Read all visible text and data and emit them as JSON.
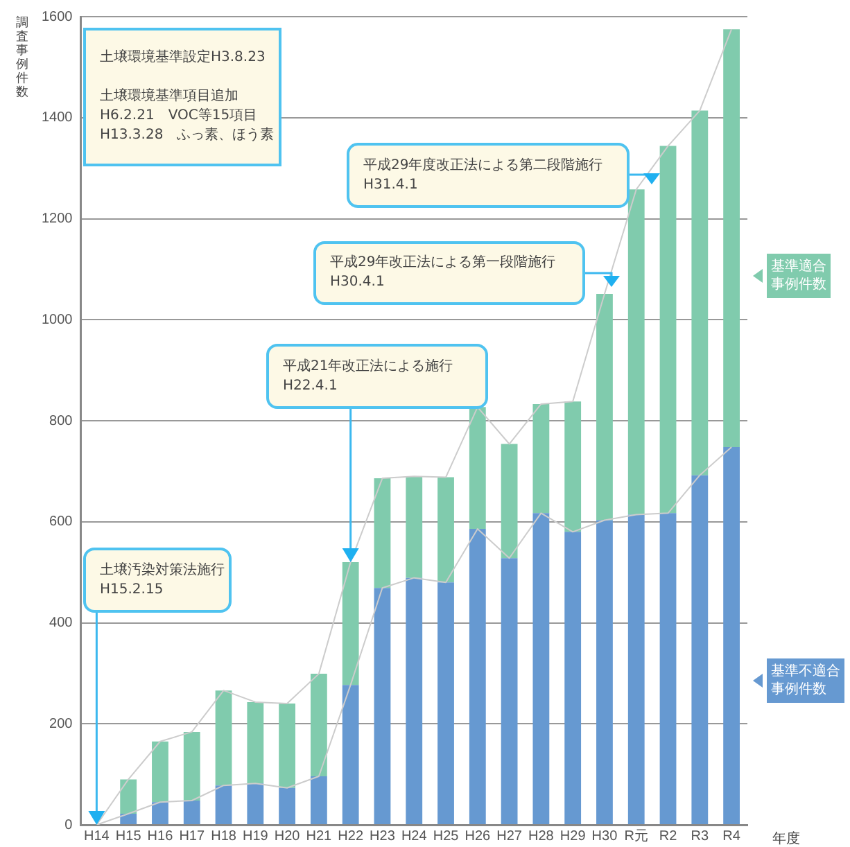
{
  "chart_data": {
    "type": "bar",
    "stacked": true,
    "ylabel": "調査事例件数",
    "xlabel": "年度",
    "categories": [
      "H14",
      "H15",
      "H16",
      "H17",
      "H18",
      "H19",
      "H20",
      "H21",
      "H22",
      "H23",
      "H24",
      "H25",
      "H26",
      "H27",
      "H28",
      "H29",
      "H30",
      "R元",
      "R2",
      "R3",
      "R4"
    ],
    "series": [
      {
        "name": "基準不適合事例件数",
        "color": "#6699d1",
        "values": [
          0,
          22,
          45,
          48,
          78,
          82,
          73,
          96,
          277,
          469,
          489,
          480,
          586,
          528,
          617,
          580,
          603,
          614,
          617,
          692,
          748
        ]
      },
      {
        "name": "基準適合事例件数",
        "color": "#80cbad",
        "values": [
          0,
          68,
          120,
          136,
          188,
          161,
          167,
          203,
          243,
          217,
          201,
          208,
          241,
          226,
          216,
          258,
          448,
          644,
          727,
          722,
          827
        ]
      },
      {
        "type": "line",
        "color": "#cccccc",
        "values": [
          0,
          22,
          45,
          48,
          78,
          82,
          73,
          96,
          277,
          469,
          489,
          480,
          586,
          528,
          617,
          580,
          603,
          614,
          617,
          692,
          748
        ]
      },
      {
        "type": "line",
        "color": "#cccccc",
        "values": [
          0,
          90,
          165,
          184,
          266,
          243,
          240,
          299,
          520,
          686,
          690,
          688,
          827,
          754,
          833,
          838,
          1051,
          1258,
          1344,
          1414,
          1575
        ]
      }
    ],
    "ylim": [
      0,
      1600
    ],
    "yticks": [
      0,
      200,
      400,
      600,
      800,
      1000,
      1200,
      1400,
      1600
    ],
    "grid": "y",
    "legend": "right",
    "marker": "none",
    "line_style": "solid",
    "annotations": [
      "土壌環境基準設定H3.8.23\n\n土壌環境基準項目追加\nH6.2.21　VOC等15項目\nH13.3.28　ふっ素、ほう素",
      {
        "text": "土壌汚染対策法施行\nH15.2.15",
        "x": "H14",
        "y": 0
      },
      {
        "text": "平成21年改正法による施行\nH22.4.1",
        "x": "H22",
        "y": 520
      },
      "平成29年改正法による第一段階施行\nH30.4.1",
      "平成29年度改正法による第二段階施行\nH31.4.1"
    ]
  }
}
